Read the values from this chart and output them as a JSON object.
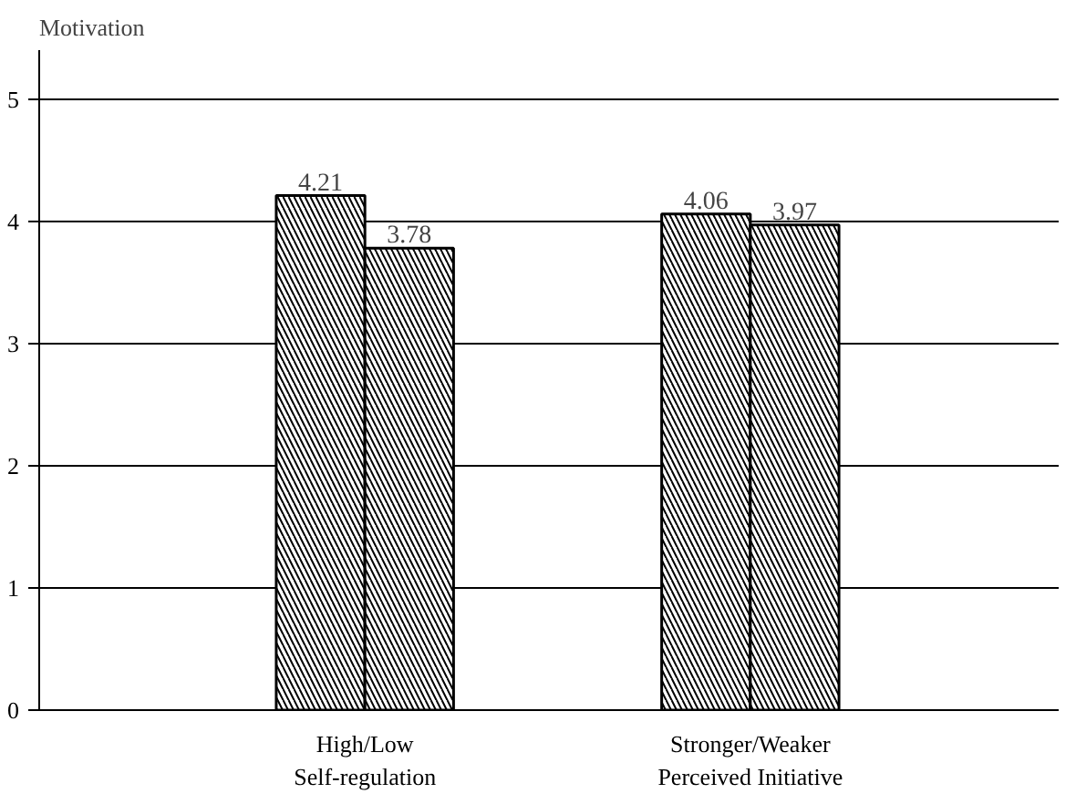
{
  "chart_data": {
    "type": "bar",
    "ylabel": "Motivation",
    "categories": [
      "High/Low\nSelf-regulation",
      "Stronger/Weaker\nPerceived Initiative"
    ],
    "series": [
      {
        "color": "#000000",
        "values": [
          4.21,
          4.06
        ]
      },
      {
        "color": "#000000",
        "values": [
          3.78,
          3.97
        ]
      }
    ],
    "ylim": [
      0,
      5.4
    ],
    "yticks": [
      0,
      1,
      2,
      3,
      4,
      5
    ],
    "grid": "y",
    "data_labels": true
  }
}
